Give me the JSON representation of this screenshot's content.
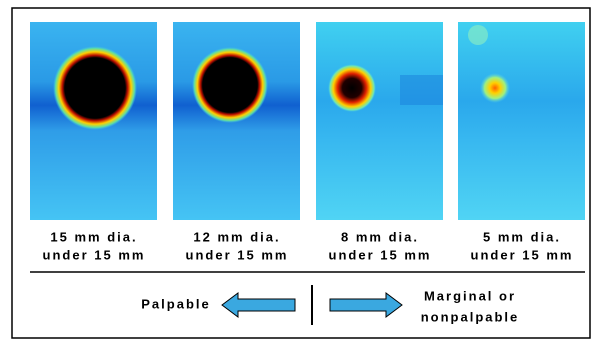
{
  "panels": [
    {
      "caption": [
        "15 mm dia.",
        "under 15 mm"
      ]
    },
    {
      "caption": [
        "12 mm dia.",
        "under 15 mm"
      ]
    },
    {
      "caption": [
        "8 mm dia.",
        "under 15 mm"
      ]
    },
    {
      "caption": [
        "5 mm dia.",
        "under 15 mm"
      ]
    }
  ],
  "legend": {
    "left": "Palpable",
    "right": [
      "Marginal or",
      "nonpalpable"
    ]
  }
}
